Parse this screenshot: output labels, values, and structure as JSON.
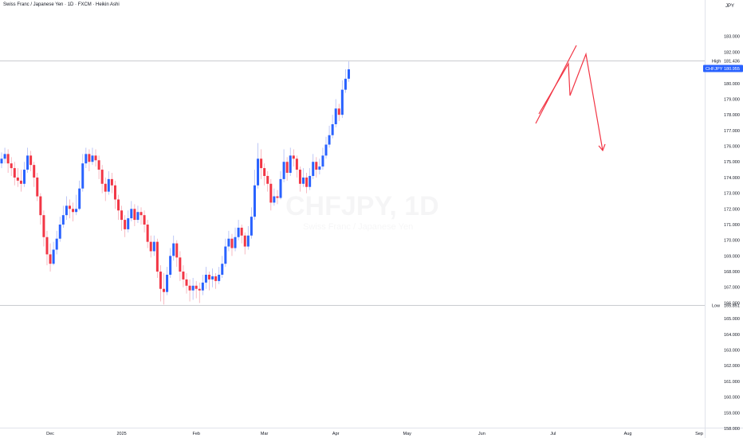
{
  "header": {
    "title": "Swiss Franc / Japanese Yen · 1D · FXCM · Heikin Ashi",
    "currency": "JPY"
  },
  "watermark": {
    "symbol": "CHFJPY, 1D",
    "subtitle": "Swiss Franc / Japanese Yen"
  },
  "colors": {
    "up": "#2962ff",
    "down": "#f23645",
    "wick_up": "#aebaf5",
    "wick_down": "#f5a9b2",
    "axis_text": "#131722",
    "price_badge": "#2962ff",
    "drawing": "#f23645"
  },
  "markers": {
    "high": {
      "label": "High",
      "value": "181.436"
    },
    "low": {
      "label": "Low",
      "value": "165.851"
    },
    "current": {
      "symbol": "CHFJPY",
      "value": "180.955"
    }
  },
  "chart_data": {
    "type": "candlestick",
    "style": "Heikin Ashi",
    "title": "Swiss Franc / Japanese Yen · 1D · FXCM · Heikin Ashi",
    "ylabel": "JPY",
    "ylim": [
      157.5,
      184.6
    ],
    "y_ticks": [
      "158.000",
      "159.000",
      "160.000",
      "161.000",
      "162.000",
      "163.000",
      "164.000",
      "165.000",
      "166.000",
      "167.000",
      "168.000",
      "169.000",
      "170.000",
      "171.000",
      "172.000",
      "173.000",
      "174.000",
      "175.000",
      "176.000",
      "177.000",
      "178.000",
      "179.000",
      "180.000",
      "181.000",
      "182.000",
      "183.000"
    ],
    "x_ticks": [
      {
        "label": "Dec",
        "bar": 15
      },
      {
        "label": "2025",
        "bar": 37
      },
      {
        "label": "Feb",
        "bar": 60
      },
      {
        "label": "Mar",
        "bar": 81
      },
      {
        "label": "Apr",
        "bar": 103
      },
      {
        "label": "May",
        "bar": 125
      },
      {
        "label": "Jun",
        "bar": 148
      },
      {
        "label": "Jul",
        "bar": 170
      },
      {
        "label": "Aug",
        "bar": 193
      },
      {
        "label": "Sep",
        "bar": 215
      }
    ],
    "candles": [
      [
        174.9,
        175.2,
        175.6,
        174.6
      ],
      [
        175.2,
        175.5,
        175.9,
        174.9
      ],
      [
        175.5,
        174.9,
        175.8,
        174.3
      ],
      [
        174.9,
        174.6,
        175.3,
        174.1
      ],
      [
        174.6,
        174.0,
        175.0,
        173.5
      ],
      [
        174.0,
        173.8,
        174.6,
        173.4
      ],
      [
        173.8,
        173.6,
        174.5,
        173.1
      ],
      [
        173.6,
        174.5,
        175.0,
        173.4
      ],
      [
        174.5,
        175.4,
        175.9,
        174.3
      ],
      [
        175.4,
        174.8,
        175.7,
        174.4
      ],
      [
        174.8,
        174.0,
        175.0,
        173.4
      ],
      [
        174.0,
        172.8,
        174.3,
        172.5
      ],
      [
        172.8,
        171.6,
        173.0,
        171.0
      ],
      [
        171.6,
        170.2,
        171.9,
        169.6
      ],
      [
        170.2,
        169.1,
        170.6,
        168.4
      ],
      [
        169.1,
        168.5,
        169.8,
        168.0
      ],
      [
        168.5,
        169.4,
        169.9,
        168.4
      ],
      [
        169.4,
        170.1,
        170.6,
        169.1
      ],
      [
        170.1,
        171.0,
        171.5,
        169.9
      ],
      [
        171.0,
        171.6,
        172.2,
        170.8
      ],
      [
        171.6,
        172.2,
        172.8,
        171.3
      ],
      [
        172.2,
        172.0,
        172.6,
        171.4
      ],
      [
        172.0,
        171.8,
        172.4,
        171.2
      ],
      [
        171.8,
        172.0,
        172.9,
        171.6
      ],
      [
        172.0,
        173.3,
        173.8,
        171.9
      ],
      [
        173.3,
        174.9,
        175.5,
        173.1
      ],
      [
        174.9,
        175.5,
        175.9,
        174.6
      ],
      [
        175.5,
        175.0,
        175.8,
        174.4
      ],
      [
        175.0,
        175.4,
        175.9,
        174.8
      ],
      [
        175.4,
        175.1,
        175.8,
        174.7
      ],
      [
        175.1,
        174.5,
        175.4,
        173.9
      ],
      [
        174.5,
        173.6,
        174.8,
        173.0
      ],
      [
        173.6,
        173.1,
        174.0,
        172.5
      ],
      [
        173.1,
        173.9,
        174.4,
        172.9
      ],
      [
        173.9,
        173.5,
        174.3,
        173.0
      ],
      [
        173.5,
        172.6,
        173.8,
        172.0
      ],
      [
        172.6,
        171.9,
        172.9,
        171.3
      ],
      [
        171.9,
        171.3,
        172.2,
        170.6
      ],
      [
        171.3,
        170.7,
        171.6,
        170.2
      ],
      [
        170.7,
        171.4,
        171.9,
        170.5
      ],
      [
        171.4,
        172.0,
        172.5,
        171.2
      ],
      [
        172.0,
        171.3,
        172.3,
        170.9
      ],
      [
        171.3,
        171.8,
        172.2,
        171.1
      ],
      [
        171.8,
        171.6,
        172.1,
        171.0
      ],
      [
        171.6,
        171.0,
        171.9,
        170.5
      ],
      [
        171.0,
        169.9,
        171.3,
        169.5
      ],
      [
        169.9,
        169.3,
        170.3,
        168.9
      ],
      [
        169.3,
        169.9,
        170.3,
        169.0
      ],
      [
        169.9,
        168.0,
        170.1,
        167.6
      ],
      [
        168.0,
        166.9,
        168.4,
        166.1
      ],
      [
        166.9,
        166.7,
        167.9,
        165.9
      ],
      [
        166.7,
        167.8,
        168.3,
        166.5
      ],
      [
        167.8,
        169.0,
        169.5,
        167.6
      ],
      [
        169.0,
        169.8,
        170.3,
        168.7
      ],
      [
        169.8,
        168.9,
        170.0,
        168.3
      ],
      [
        168.9,
        168.0,
        169.3,
        167.4
      ],
      [
        168.0,
        167.5,
        168.4,
        167.0
      ],
      [
        167.5,
        167.1,
        167.9,
        166.6
      ],
      [
        167.1,
        166.8,
        167.5,
        166.1
      ],
      [
        166.8,
        167.1,
        167.6,
        166.2
      ],
      [
        167.1,
        166.9,
        167.4,
        166.3
      ],
      [
        166.9,
        166.8,
        167.3,
        166.0
      ],
      [
        166.8,
        167.3,
        167.8,
        166.5
      ],
      [
        167.3,
        167.8,
        168.3,
        166.9
      ],
      [
        167.8,
        167.5,
        168.0,
        166.8
      ],
      [
        167.5,
        167.7,
        168.2,
        167.0
      ],
      [
        167.7,
        167.4,
        167.9,
        166.9
      ],
      [
        167.4,
        167.8,
        168.3,
        167.2
      ],
      [
        167.8,
        168.5,
        169.0,
        167.6
      ],
      [
        168.5,
        169.6,
        170.1,
        168.3
      ],
      [
        169.6,
        170.1,
        170.6,
        169.3
      ],
      [
        170.1,
        169.5,
        170.4,
        169.0
      ],
      [
        169.5,
        170.2,
        170.8,
        169.3
      ],
      [
        170.2,
        170.8,
        171.3,
        170.0
      ],
      [
        170.8,
        170.3,
        171.0,
        169.8
      ],
      [
        170.3,
        169.6,
        170.5,
        169.1
      ],
      [
        169.6,
        170.3,
        170.9,
        169.4
      ],
      [
        170.3,
        171.5,
        172.1,
        170.1
      ],
      [
        171.5,
        173.5,
        174.5,
        171.3
      ],
      [
        173.5,
        175.2,
        176.2,
        173.3
      ],
      [
        175.2,
        174.6,
        175.8,
        173.9
      ],
      [
        174.6,
        174.1,
        174.9,
        173.5
      ],
      [
        174.1,
        173.6,
        174.4,
        173.1
      ],
      [
        173.6,
        172.4,
        173.9,
        171.9
      ],
      [
        172.4,
        172.8,
        173.3,
        172.2
      ],
      [
        172.8,
        172.7,
        173.2,
        172.3
      ],
      [
        172.7,
        173.9,
        174.4,
        172.6
      ],
      [
        173.9,
        175.0,
        175.8,
        173.7
      ],
      [
        175.0,
        174.3,
        175.3,
        173.8
      ],
      [
        174.3,
        175.4,
        175.9,
        174.1
      ],
      [
        175.4,
        175.2,
        175.8,
        174.7
      ],
      [
        175.2,
        174.5,
        175.4,
        174.0
      ],
      [
        174.5,
        173.6,
        174.7,
        173.1
      ],
      [
        173.6,
        174.0,
        174.6,
        173.4
      ],
      [
        174.0,
        173.4,
        174.3,
        173.0
      ],
      [
        173.4,
        174.1,
        174.6,
        173.2
      ],
      [
        174.1,
        175.0,
        175.5,
        173.9
      ],
      [
        175.0,
        174.5,
        175.3,
        174.0
      ],
      [
        174.5,
        174.7,
        175.2,
        174.2
      ],
      [
        174.7,
        175.4,
        175.9,
        174.5
      ],
      [
        175.4,
        176.1,
        176.6,
        175.2
      ],
      [
        176.1,
        176.7,
        177.3,
        175.9
      ],
      [
        176.7,
        177.4,
        178.0,
        176.5
      ],
      [
        177.4,
        178.4,
        179.0,
        177.2
      ],
      [
        178.4,
        178.0,
        178.7,
        177.6
      ],
      [
        178.0,
        179.6,
        180.2,
        177.8
      ],
      [
        179.6,
        180.3,
        180.9,
        179.4
      ],
      [
        180.3,
        180.9,
        181.4,
        180.1
      ]
    ]
  }
}
